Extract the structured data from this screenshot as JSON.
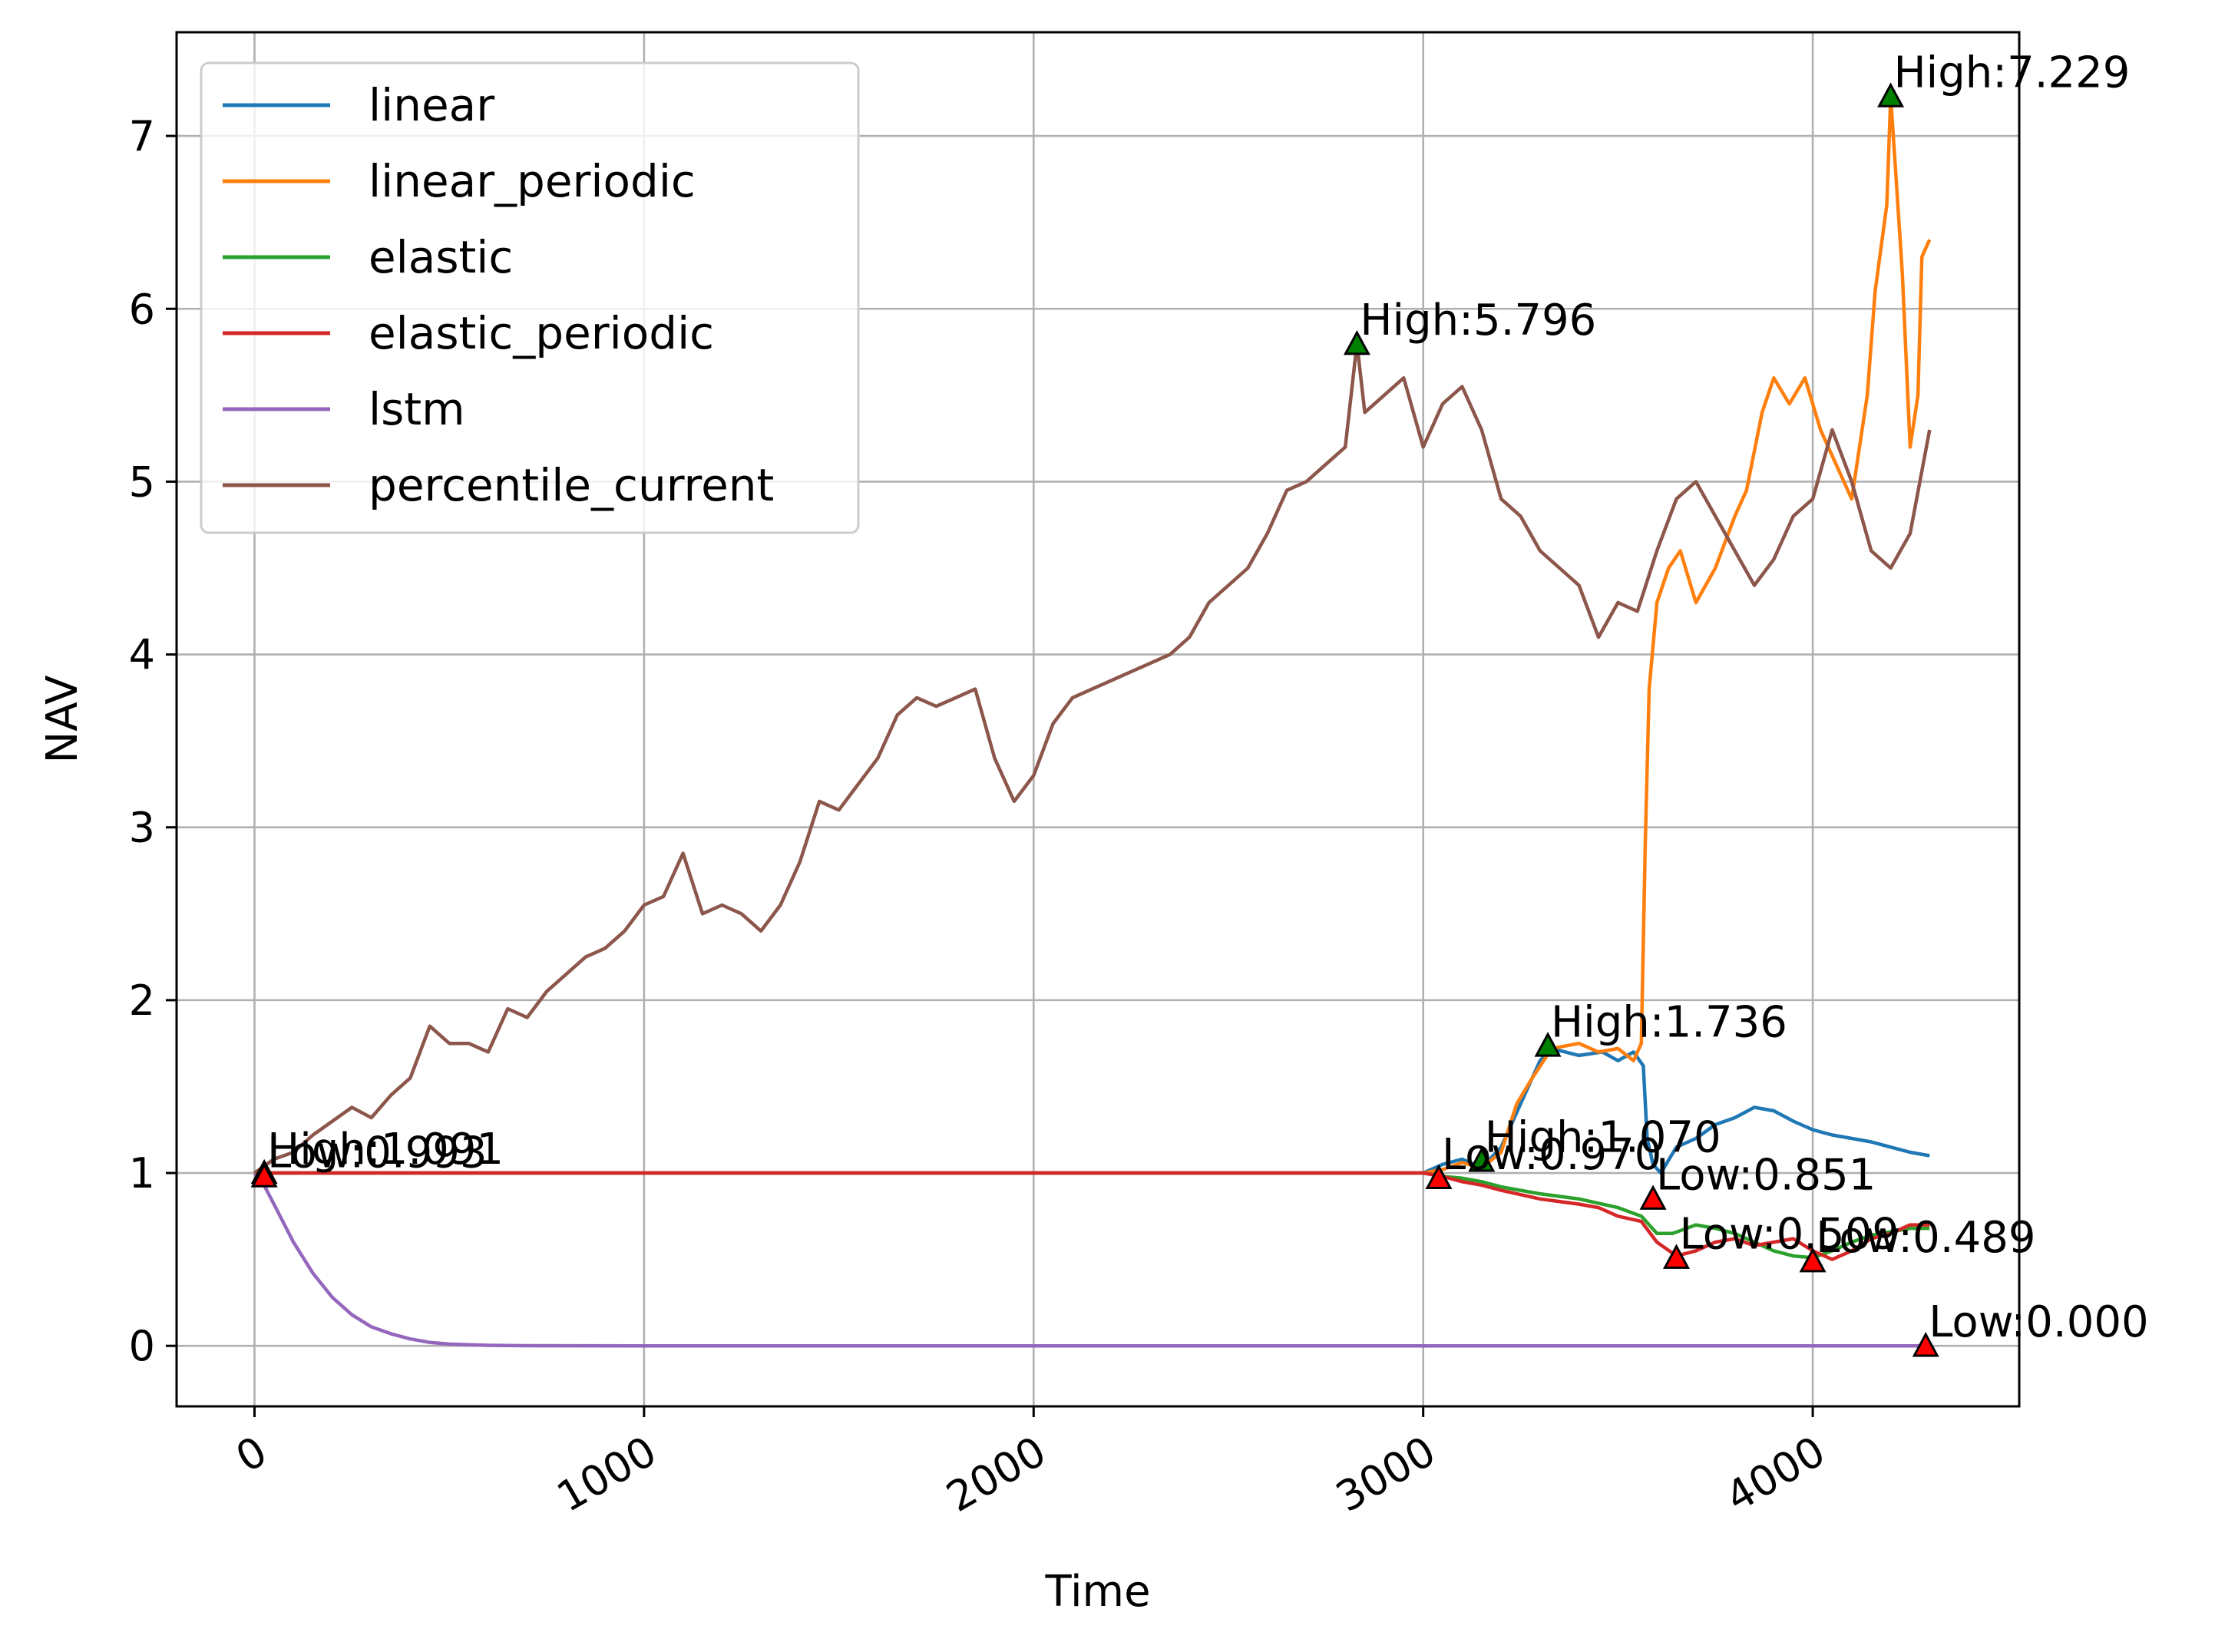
{
  "chart_data": {
    "type": "line",
    "xlabel": "Time",
    "ylabel": "NAV",
    "xlim": [
      -200,
      4530
    ],
    "ylim": [
      -0.35,
      7.6
    ],
    "xticks": [
      0,
      1000,
      2000,
      3000,
      4000
    ],
    "xtick_labels": [
      "0",
      "1000",
      "2000",
      "3000",
      "4000"
    ],
    "yticks": [
      0,
      1,
      2,
      3,
      4,
      5,
      6,
      7
    ],
    "ytick_labels": [
      "0",
      "1",
      "2",
      "3",
      "4",
      "5",
      "6",
      "7"
    ],
    "grid": true,
    "legend_position": "upper-left",
    "series": [
      {
        "name": "linear",
        "color": "#1f77b4",
        "points": [
          [
            0,
            1.0
          ],
          [
            3000,
            1.0
          ],
          [
            3050,
            1.05
          ],
          [
            3100,
            1.08
          ],
          [
            3150,
            1.03
          ],
          [
            3200,
            1.15
          ],
          [
            3260,
            1.45
          ],
          [
            3300,
            1.65
          ],
          [
            3330,
            1.72
          ],
          [
            3400,
            1.68
          ],
          [
            3460,
            1.7
          ],
          [
            3500,
            1.65
          ],
          [
            3540,
            1.7
          ],
          [
            3565,
            1.62
          ],
          [
            3575,
            1.2
          ],
          [
            3590,
            1.05
          ],
          [
            3610,
            1.0
          ],
          [
            3650,
            1.15
          ],
          [
            3700,
            1.2
          ],
          [
            3750,
            1.28
          ],
          [
            3800,
            1.32
          ],
          [
            3850,
            1.38
          ],
          [
            3900,
            1.36
          ],
          [
            3950,
            1.3
          ],
          [
            4000,
            1.25
          ],
          [
            4050,
            1.22
          ],
          [
            4100,
            1.2
          ],
          [
            4150,
            1.18
          ],
          [
            4200,
            1.15
          ],
          [
            4250,
            1.12
          ],
          [
            4300,
            1.1
          ]
        ]
      },
      {
        "name": "linear_periodic",
        "color": "#ff7f0e",
        "points": [
          [
            0,
            1.0
          ],
          [
            3000,
            1.0
          ],
          [
            3050,
            1.02
          ],
          [
            3100,
            1.06
          ],
          [
            3150,
            1.03
          ],
          [
            3200,
            1.12
          ],
          [
            3240,
            1.4
          ],
          [
            3280,
            1.55
          ],
          [
            3330,
            1.72
          ],
          [
            3400,
            1.75
          ],
          [
            3450,
            1.7
          ],
          [
            3500,
            1.72
          ],
          [
            3540,
            1.65
          ],
          [
            3560,
            1.75
          ],
          [
            3570,
            2.9
          ],
          [
            3580,
            3.8
          ],
          [
            3600,
            4.3
          ],
          [
            3630,
            4.5
          ],
          [
            3660,
            4.6
          ],
          [
            3700,
            4.3
          ],
          [
            3750,
            4.5
          ],
          [
            3800,
            4.8
          ],
          [
            3830,
            4.95
          ],
          [
            3870,
            5.4
          ],
          [
            3900,
            5.6
          ],
          [
            3940,
            5.45
          ],
          [
            3980,
            5.6
          ],
          [
            4020,
            5.3
          ],
          [
            4060,
            5.1
          ],
          [
            4100,
            4.9
          ],
          [
            4140,
            5.5
          ],
          [
            4160,
            6.1
          ],
          [
            4190,
            6.6
          ],
          [
            4200,
            7.23
          ],
          [
            4230,
            6.2
          ],
          [
            4250,
            5.2
          ],
          [
            4270,
            5.5
          ],
          [
            4280,
            6.3
          ],
          [
            4300,
            6.4
          ]
        ]
      },
      {
        "name": "elastic",
        "color": "#2ca02c",
        "points": [
          [
            0,
            1.0
          ],
          [
            3000,
            1.0
          ],
          [
            3050,
            0.98
          ],
          [
            3100,
            0.97
          ],
          [
            3150,
            0.95
          ],
          [
            3200,
            0.92
          ],
          [
            3300,
            0.88
          ],
          [
            3400,
            0.85
          ],
          [
            3500,
            0.8
          ],
          [
            3560,
            0.75
          ],
          [
            3600,
            0.65
          ],
          [
            3640,
            0.65
          ],
          [
            3700,
            0.7
          ],
          [
            3750,
            0.68
          ],
          [
            3800,
            0.65
          ],
          [
            3850,
            0.6
          ],
          [
            3900,
            0.55
          ],
          [
            3950,
            0.52
          ],
          [
            4000,
            0.51
          ],
          [
            4050,
            0.55
          ],
          [
            4100,
            0.6
          ],
          [
            4150,
            0.64
          ],
          [
            4200,
            0.66
          ],
          [
            4250,
            0.68
          ],
          [
            4300,
            0.68
          ]
        ]
      },
      {
        "name": "elastic_periodic",
        "color": "#d62728",
        "points": [
          [
            0,
            1.0
          ],
          [
            3000,
            1.0
          ],
          [
            3050,
            0.98
          ],
          [
            3100,
            0.95
          ],
          [
            3150,
            0.93
          ],
          [
            3200,
            0.9
          ],
          [
            3300,
            0.85
          ],
          [
            3400,
            0.82
          ],
          [
            3450,
            0.8
          ],
          [
            3500,
            0.75
          ],
          [
            3560,
            0.72
          ],
          [
            3600,
            0.6
          ],
          [
            3650,
            0.52
          ],
          [
            3700,
            0.55
          ],
          [
            3750,
            0.6
          ],
          [
            3800,
            0.62
          ],
          [
            3850,
            0.58
          ],
          [
            3900,
            0.6
          ],
          [
            3950,
            0.62
          ],
          [
            4000,
            0.55
          ],
          [
            4050,
            0.5
          ],
          [
            4100,
            0.55
          ],
          [
            4150,
            0.62
          ],
          [
            4200,
            0.65
          ],
          [
            4250,
            0.7
          ],
          [
            4300,
            0.7
          ]
        ]
      },
      {
        "name": "lstm",
        "color": "#9467bd",
        "points": [
          [
            0,
            1.0
          ],
          [
            20,
            0.95
          ],
          [
            50,
            0.82
          ],
          [
            100,
            0.6
          ],
          [
            150,
            0.42
          ],
          [
            200,
            0.28
          ],
          [
            250,
            0.18
          ],
          [
            300,
            0.11
          ],
          [
            350,
            0.07
          ],
          [
            400,
            0.04
          ],
          [
            450,
            0.02
          ],
          [
            500,
            0.01
          ],
          [
            600,
            0.003
          ],
          [
            700,
            0.001
          ],
          [
            1000,
            0.0
          ],
          [
            4300,
            0.0
          ]
        ]
      },
      {
        "name": "percentile_current",
        "color": "#8c564b",
        "points": [
          [
            0,
            1.0
          ],
          [
            50,
            1.08
          ],
          [
            100,
            1.12
          ],
          [
            150,
            1.22
          ],
          [
            200,
            1.3
          ],
          [
            250,
            1.38
          ],
          [
            300,
            1.32
          ],
          [
            350,
            1.45
          ],
          [
            400,
            1.55
          ],
          [
            450,
            1.85
          ],
          [
            500,
            1.75
          ],
          [
            550,
            1.75
          ],
          [
            600,
            1.7
          ],
          [
            650,
            1.95
          ],
          [
            700,
            1.9
          ],
          [
            750,
            2.05
          ],
          [
            800,
            2.15
          ],
          [
            850,
            2.25
          ],
          [
            900,
            2.3
          ],
          [
            950,
            2.4
          ],
          [
            1000,
            2.55
          ],
          [
            1050,
            2.6
          ],
          [
            1100,
            2.85
          ],
          [
            1150,
            2.5
          ],
          [
            1200,
            2.55
          ],
          [
            1250,
            2.5
          ],
          [
            1300,
            2.4
          ],
          [
            1350,
            2.55
          ],
          [
            1400,
            2.8
          ],
          [
            1450,
            3.15
          ],
          [
            1500,
            3.1
          ],
          [
            1550,
            3.25
          ],
          [
            1600,
            3.4
          ],
          [
            1650,
            3.65
          ],
          [
            1700,
            3.75
          ],
          [
            1750,
            3.7
          ],
          [
            1800,
            3.75
          ],
          [
            1850,
            3.8
          ],
          [
            1900,
            3.4
          ],
          [
            1950,
            3.15
          ],
          [
            2000,
            3.3
          ],
          [
            2050,
            3.6
          ],
          [
            2100,
            3.75
          ],
          [
            2150,
            3.8
          ],
          [
            2200,
            3.85
          ],
          [
            2250,
            3.9
          ],
          [
            2300,
            3.95
          ],
          [
            2350,
            4.0
          ],
          [
            2400,
            4.1
          ],
          [
            2450,
            4.3
          ],
          [
            2500,
            4.4
          ],
          [
            2550,
            4.5
          ],
          [
            2600,
            4.7
          ],
          [
            2650,
            4.95
          ],
          [
            2700,
            5.0
          ],
          [
            2750,
            5.1
          ],
          [
            2800,
            5.2
          ],
          [
            2830,
            5.8
          ],
          [
            2850,
            5.4
          ],
          [
            2900,
            5.5
          ],
          [
            2950,
            5.6
          ],
          [
            3000,
            5.2
          ],
          [
            3050,
            5.45
          ],
          [
            3100,
            5.55
          ],
          [
            3150,
            5.3
          ],
          [
            3200,
            4.9
          ],
          [
            3250,
            4.8
          ],
          [
            3300,
            4.6
          ],
          [
            3350,
            4.5
          ],
          [
            3400,
            4.4
          ],
          [
            3450,
            4.1
          ],
          [
            3500,
            4.3
          ],
          [
            3550,
            4.25
          ],
          [
            3600,
            4.6
          ],
          [
            3650,
            4.9
          ],
          [
            3700,
            5.0
          ],
          [
            3750,
            4.8
          ],
          [
            3800,
            4.6
          ],
          [
            3850,
            4.4
          ],
          [
            3900,
            4.55
          ],
          [
            3950,
            4.8
          ],
          [
            4000,
            4.9
          ],
          [
            4050,
            5.3
          ],
          [
            4100,
            5.0
          ],
          [
            4150,
            4.6
          ],
          [
            4200,
            4.5
          ],
          [
            4250,
            4.7
          ],
          [
            4300,
            5.3
          ]
        ]
      }
    ],
    "annotations": [
      {
        "text": "High:1.091",
        "x": 25,
        "y": 1.0,
        "marker": "high"
      },
      {
        "text": "Low:0.993",
        "x": 25,
        "y": 0.98,
        "marker": "low"
      },
      {
        "text": "High:5.796",
        "x": 2830,
        "y": 5.796,
        "marker": "high"
      },
      {
        "text": "High:7.229",
        "x": 4200,
        "y": 7.229,
        "marker": "high"
      },
      {
        "text": "High:1.736",
        "x": 3320,
        "y": 1.736,
        "marker": "high"
      },
      {
        "text": "High:1.070",
        "x": 3150,
        "y": 1.07,
        "marker": "high"
      },
      {
        "text": "Low:0.970",
        "x": 3040,
        "y": 0.97,
        "marker": "low"
      },
      {
        "text": "Low:0.851",
        "x": 3590,
        "y": 0.851,
        "marker": "low"
      },
      {
        "text": "Low:0.509",
        "x": 3650,
        "y": 0.509,
        "marker": "low"
      },
      {
        "text": "Low:0.489",
        "x": 4000,
        "y": 0.489,
        "marker": "low"
      },
      {
        "text": "Low:0.000",
        "x": 4290,
        "y": 0.0,
        "marker": "low"
      }
    ]
  }
}
